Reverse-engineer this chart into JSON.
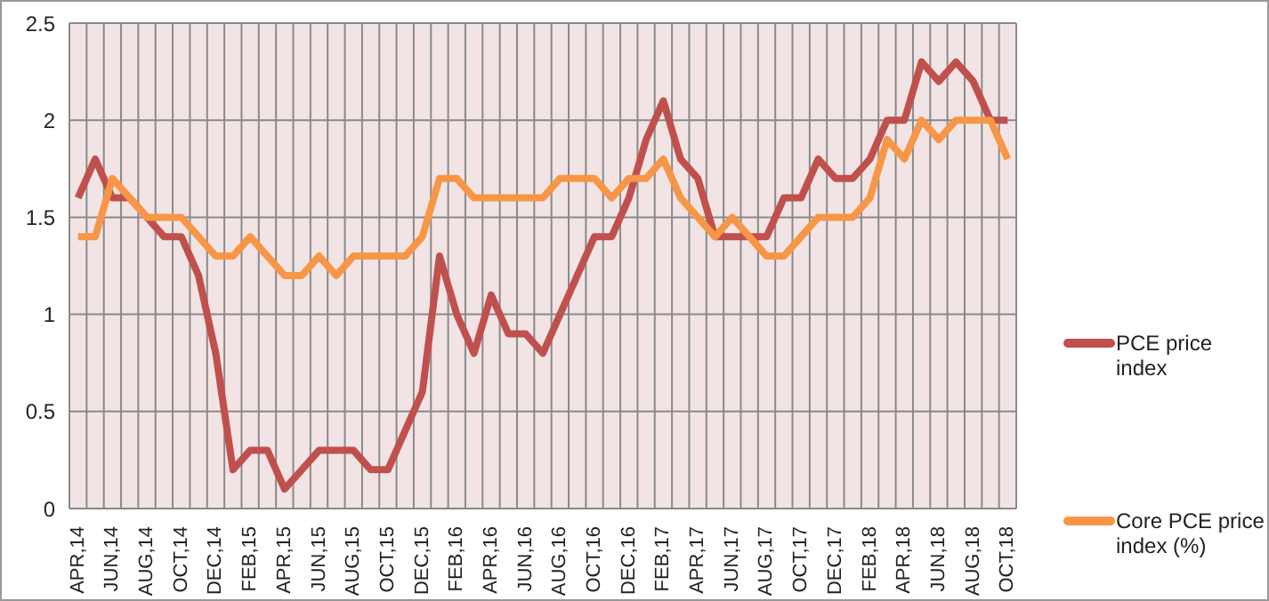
{
  "chart_data": {
    "type": "line",
    "categories": [
      "APR,14",
      null,
      "JUN,14",
      null,
      "AUG,14",
      null,
      "OCT,14",
      null,
      "DEC,14",
      null,
      "FEB,15",
      null,
      "APR,15",
      null,
      "JUN,15",
      null,
      "AUG,15",
      null,
      "OCT,15",
      null,
      "DEC,15",
      null,
      "FEB,16",
      null,
      "APR,16",
      null,
      "JUN,16",
      null,
      "AUG,16",
      null,
      "OCT,16",
      null,
      "DEC,16",
      null,
      "FEB,17",
      null,
      "APR,17",
      null,
      "JUN,17",
      null,
      "AUG,17",
      null,
      "OCT,17",
      null,
      "DEC,17",
      null,
      "FEB,18",
      null,
      "APR,18",
      null,
      "JUN,18",
      null,
      "AUG,18",
      null,
      "OCT,18"
    ],
    "series": [
      {
        "name": "PCE price index",
        "color": "#c0504d",
        "values": [
          1.6,
          1.8,
          1.6,
          1.6,
          1.5,
          1.4,
          1.4,
          1.2,
          0.8,
          0.2,
          0.3,
          0.3,
          0.1,
          0.2,
          0.3,
          0.3,
          0.3,
          0.2,
          0.2,
          0.4,
          0.6,
          1.3,
          1.0,
          0.8,
          1.1,
          0.9,
          0.9,
          0.8,
          1.0,
          1.2,
          1.4,
          1.4,
          1.6,
          1.9,
          2.1,
          1.8,
          1.7,
          1.4,
          1.4,
          1.4,
          1.4,
          1.6,
          1.6,
          1.8,
          1.7,
          1.7,
          1.8,
          2.0,
          2.0,
          2.3,
          2.2,
          2.3,
          2.2,
          2.0,
          2.0
        ]
      },
      {
        "name": "Core PCE price index (%)",
        "color": "#f79646",
        "values": [
          1.4,
          1.4,
          1.7,
          1.6,
          1.5,
          1.5,
          1.5,
          1.4,
          1.3,
          1.3,
          1.4,
          1.3,
          1.2,
          1.2,
          1.3,
          1.2,
          1.3,
          1.3,
          1.3,
          1.3,
          1.4,
          1.7,
          1.7,
          1.6,
          1.6,
          1.6,
          1.6,
          1.6,
          1.7,
          1.7,
          1.7,
          1.6,
          1.7,
          1.7,
          1.8,
          1.6,
          1.5,
          1.4,
          1.5,
          1.4,
          1.3,
          1.3,
          1.4,
          1.5,
          1.5,
          1.5,
          1.6,
          1.9,
          1.8,
          2.0,
          1.9,
          2.0,
          2.0,
          2.0,
          1.8
        ]
      }
    ],
    "ylim": [
      0,
      2.5
    ],
    "yticks": [
      0,
      0.5,
      1,
      1.5,
      2,
      2.5
    ],
    "grid": true,
    "legend": "right",
    "marker": "none",
    "line_style": "solid"
  }
}
